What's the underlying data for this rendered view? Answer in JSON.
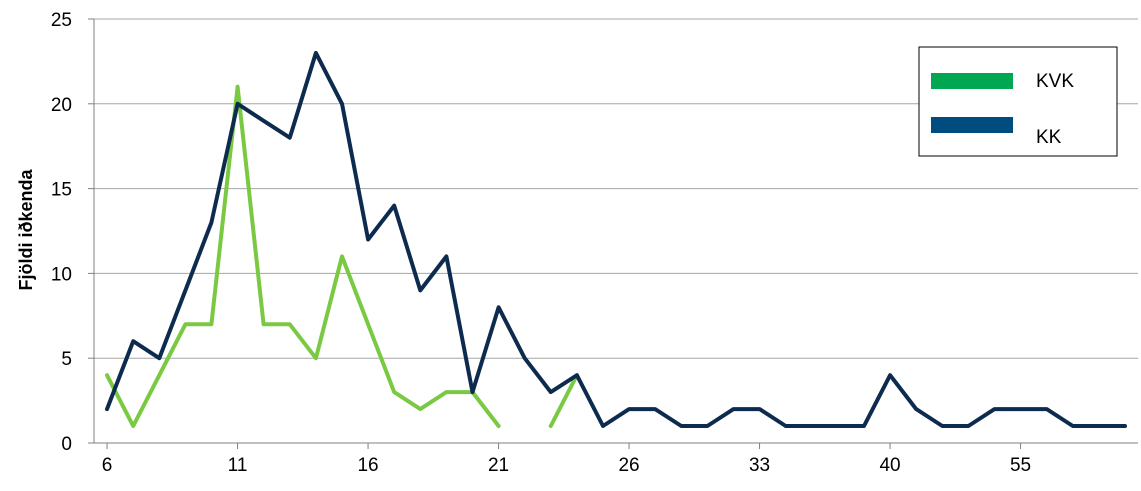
{
  "chart_data": {
    "type": "line",
    "title": "",
    "xlabel": "",
    "ylabel": "Fjöldi iðkenda",
    "ylim": [
      0,
      25
    ],
    "yticks": [
      "0",
      "5",
      "10",
      "15",
      "20",
      "25"
    ],
    "categories": [
      "6",
      "7",
      "8",
      "9",
      "10",
      "11",
      "12",
      "13",
      "14",
      "15",
      "16",
      "17",
      "18",
      "19",
      "20",
      "21",
      "22",
      "23",
      "24",
      "25",
      "26",
      "27",
      "28",
      "29",
      "33",
      "34",
      "35",
      "36",
      "37",
      "38",
      "40",
      "42",
      "44",
      "45",
      "55",
      "56",
      "57",
      "58",
      "59",
      "60"
    ],
    "x_tick_labels": [
      "6",
      "11",
      "16",
      "21",
      "26",
      "33",
      "40",
      "55"
    ],
    "x_tick_indices": [
      0,
      5,
      10,
      15,
      20,
      25,
      30,
      35
    ],
    "grid": "horizontal",
    "legend_position": "top-right",
    "series": [
      {
        "name": "KVK",
        "color": "#7ac943",
        "legend_color": "#00a651",
        "values": [
          4,
          1,
          4,
          7,
          7,
          21,
          7,
          7,
          5,
          11,
          7,
          3,
          2,
          3,
          3,
          1,
          null,
          1,
          4,
          null,
          null,
          null,
          null,
          null,
          null,
          null,
          1,
          1,
          1,
          null,
          null,
          null,
          null,
          null,
          null,
          null,
          null,
          null,
          null,
          null
        ]
      },
      {
        "name": "KK",
        "color": "#0d2b4e",
        "legend_color": "#004c7f",
        "values": [
          2,
          6,
          5,
          9,
          13,
          20,
          19,
          18,
          23,
          20,
          12,
          14,
          9,
          11,
          3,
          8,
          5,
          3,
          4,
          1,
          2,
          2,
          1,
          1,
          2,
          2,
          1,
          1,
          1,
          1,
          4,
          2,
          1,
          1,
          2,
          2,
          2,
          1,
          1,
          1
        ]
      }
    ]
  }
}
